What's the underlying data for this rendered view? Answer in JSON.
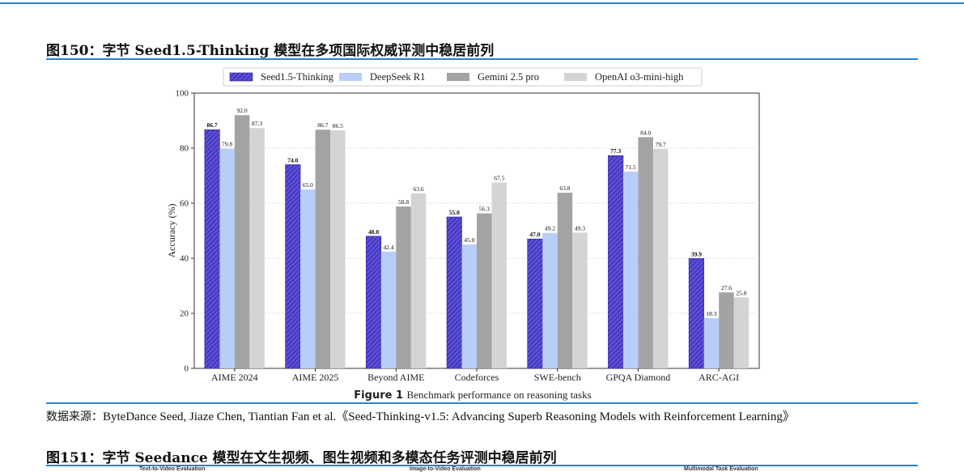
{
  "header": {
    "figure150_title": "图150：字节 Seed1.5-Thinking 模型在多项国际权威评测中稳居前列",
    "source_label": "数据来源：",
    "source_text": "ByteDance Seed, Jiaze Chen, Tiantian Fan et al.《Seed-Thinking-v1.5: Advancing Superb Reasoning Models with Reinforcement Learning》",
    "figure151_title": "图151：字节 Seedance 模型在文生视频、图生视频和多模态任务评测中稳居前列"
  },
  "bottom_cut": {
    "left": "Text-to-Video Evaluation",
    "middle": "Image-to-Video Evaluation",
    "right": "Multimodal Task Evaluation"
  },
  "chart_data": {
    "type": "bar",
    "categories": [
      "AIME 2024",
      "AIME 2025",
      "Beyond AIME",
      "Codeforces",
      "SWE-bench",
      "GPQA Diamond",
      "ARC-AGI"
    ],
    "series": [
      {
        "name": "Seed1.5-Thinking",
        "values": [
          86.7,
          74.0,
          48.0,
          55.0,
          47.0,
          77.3,
          39.9
        ],
        "color": "#5b4fd6",
        "hatch": true,
        "labels": [
          "86.7",
          "74.0",
          "48.0",
          "55.0",
          "47.0",
          "77.3",
          "39.9"
        ]
      },
      {
        "name": "DeepSeek R1",
        "values": [
          79.8,
          65.0,
          42.4,
          45.0,
          49.2,
          71.5,
          18.3
        ],
        "color": "#b8cef8",
        "hatch": false,
        "labels": [
          "79.8",
          "65.0",
          "42.4",
          "45.0",
          "49.2",
          "71.5",
          "18.3"
        ]
      },
      {
        "name": "Gemini 2.5 pro",
        "values": [
          92.0,
          86.7,
          58.8,
          56.3,
          63.8,
          84.0,
          27.6
        ],
        "color": "#a3a3a3",
        "hatch": false,
        "labels": [
          "92.0",
          "86.7",
          "58.8",
          "56.3",
          "63.8",
          "84.0",
          "27.6"
        ]
      },
      {
        "name": "OpenAI o3-mini-high",
        "values": [
          87.3,
          86.5,
          63.6,
          67.5,
          49.3,
          79.7,
          25.8
        ],
        "color": "#d4d4d4",
        "hatch": false,
        "labels": [
          "87.3",
          "86.5",
          "63.6",
          "67.5",
          "49.3",
          "79.7",
          "25.8"
        ]
      }
    ],
    "ylabel": "Accuracy (%)",
    "ylim": [
      0,
      100
    ],
    "yticks": [
      "0",
      "20",
      "40",
      "60",
      "80",
      "100"
    ],
    "grid": true,
    "legend": "top-center",
    "caption_label": "Figure 1",
    "caption_text": "Benchmark performance on reasoning tasks"
  }
}
